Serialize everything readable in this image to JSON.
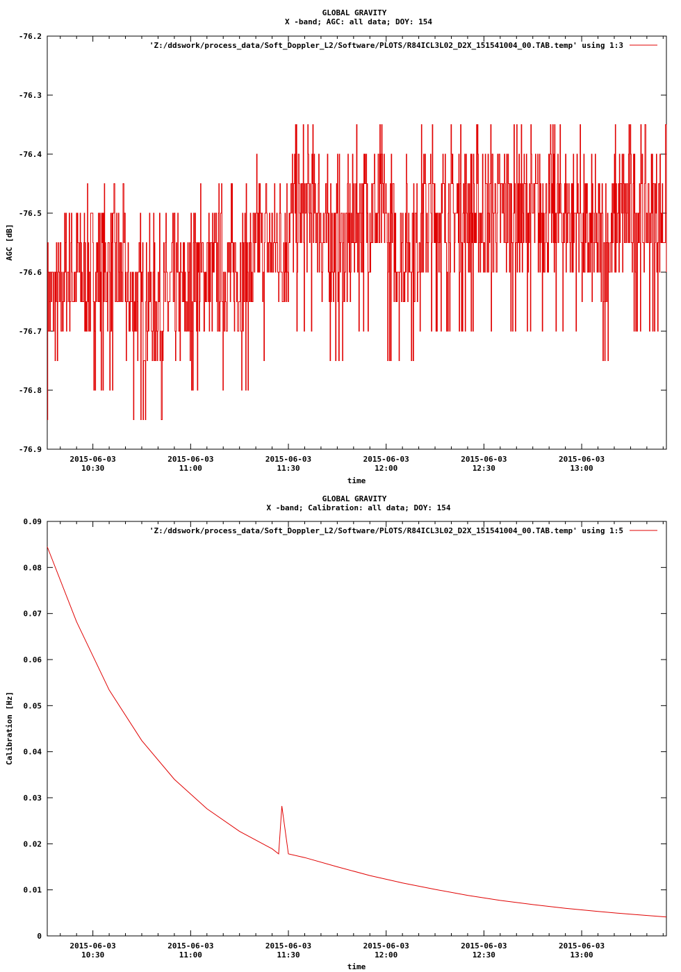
{
  "chart_data": [
    {
      "type": "line",
      "title": "GLOBAL GRAVITY",
      "subtitle": "X -band; AGC: all data; DOY: 154",
      "xlabel": "time",
      "ylabel": "AGC [dB]",
      "xlim": [
        "10:16",
        "13:26"
      ],
      "ylim": [
        -76.9,
        -76.2
      ],
      "yticks": [
        "-76.2",
        "-76.3",
        "-76.4",
        "-76.5",
        "-76.6",
        "-76.7",
        "-76.8",
        "-76.9"
      ],
      "xtick_dates": [
        "2015-06-03",
        "2015-06-03",
        "2015-06-03",
        "2015-06-03",
        "2015-06-03",
        "2015-06-03"
      ],
      "xtick_times": [
        "10:30",
        "11:00",
        "11:30",
        "12:00",
        "12:30",
        "13:00"
      ],
      "grid": false,
      "legend_position": "top-right",
      "series": [
        {
          "name": "'Z:/ddswork/process_data/Soft_Doppler_L2/Software/PLOTS/R84ICL3L02_D2X_151541004_00.TAB.temp' using 1:3",
          "color": "#e00000",
          "sampling": "value every ~8 s, noisy between -76.9 and -76.3",
          "x": [
            "10:16",
            "10:25",
            "10:35",
            "10:45",
            "10:55",
            "11:05",
            "11:15",
            "11:25",
            "11:35",
            "11:45",
            "11:55",
            "12:05",
            "12:15",
            "12:25",
            "12:35",
            "12:45",
            "12:55",
            "13:05",
            "13:15",
            "13:26"
          ],
          "values": [
            -76.65,
            -76.6,
            -76.6,
            -76.65,
            -76.65,
            -76.6,
            -76.6,
            -76.55,
            -76.5,
            -76.55,
            -76.5,
            -76.55,
            -76.5,
            -76.5,
            -76.5,
            -76.5,
            -76.5,
            -76.55,
            -76.5,
            -76.5
          ]
        }
      ]
    },
    {
      "type": "line",
      "title": "GLOBAL GRAVITY",
      "subtitle": "X -band; Calibration: all data; DOY: 154",
      "xlabel": "time",
      "ylabel": "Calibration [Hz]",
      "xlim": [
        "10:16",
        "13:26"
      ],
      "ylim": [
        0,
        0.09
      ],
      "yticks": [
        "0",
        "0.01",
        "0.02",
        "0.03",
        "0.04",
        "0.05",
        "0.06",
        "0.07",
        "0.08",
        "0.09"
      ],
      "xtick_dates": [
        "2015-06-03",
        "2015-06-03",
        "2015-06-03",
        "2015-06-03",
        "2015-06-03",
        "2015-06-03"
      ],
      "xtick_times": [
        "10:30",
        "11:00",
        "11:30",
        "12:00",
        "12:30",
        "13:00"
      ],
      "grid": false,
      "legend_position": "top-right",
      "series": [
        {
          "name": "'Z:/ddswork/process_data/Soft_Doppler_L2/Software/PLOTS/R84ICL3L02_D2X_151541004_00.TAB.temp' using 1:5",
          "color": "#e00000",
          "x": [
            "10:16",
            "10:25",
            "10:35",
            "10:45",
            "10:55",
            "11:05",
            "11:15",
            "11:25",
            "11:27",
            "11:28",
            "11:30",
            "11:35",
            "11:45",
            "11:55",
            "12:05",
            "12:15",
            "12:25",
            "12:35",
            "12:45",
            "12:55",
            "13:05",
            "13:15",
            "13:26"
          ],
          "values": [
            0.0845,
            0.0682,
            0.0534,
            0.0424,
            0.034,
            0.0276,
            0.0227,
            0.0189,
            0.0178,
            0.0282,
            0.0178,
            0.017,
            0.015,
            0.0131,
            0.0115,
            0.0101,
            0.0088,
            0.0077,
            0.0068,
            0.006,
            0.0053,
            0.0047,
            0.0041
          ]
        }
      ]
    }
  ]
}
